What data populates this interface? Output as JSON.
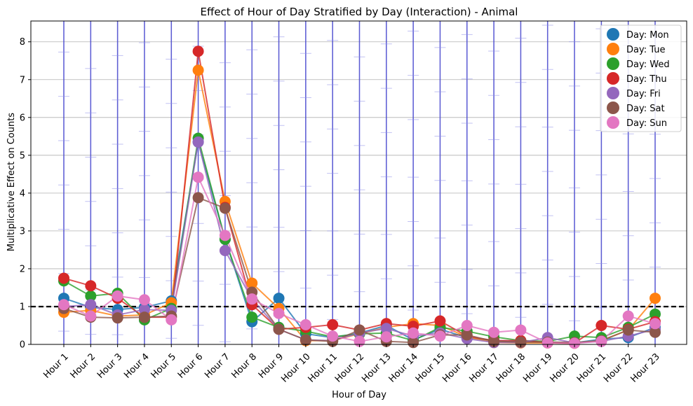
{
  "chart_data": {
    "type": "line",
    "title": "Effect of Hour of Day Stratified by Day (Interaction) - Animal",
    "xlabel": "Hour of Day",
    "ylabel": "Multiplicative Effect on Counts",
    "categories": [
      "Hour 1",
      "Hour 2",
      "Hour 3",
      "Hour 4",
      "Hour 5",
      "Hour 6",
      "Hour 7",
      "Hour 8",
      "Hour 9",
      "Hour 10",
      "Hour 11",
      "Hour 12",
      "Hour 13",
      "Hour 14",
      "Hour 15",
      "Hour 16",
      "Hour 17",
      "Hour 18",
      "Hour 19",
      "Hour 20",
      "Hour 21",
      "Hour 22",
      "Hour 23"
    ],
    "ylim": [
      0,
      8.55
    ],
    "yticks": [
      0,
      1,
      2,
      3,
      4,
      5,
      6,
      7,
      8
    ],
    "grid": true,
    "legend_position": "top-right",
    "reference_line": 1,
    "series": [
      {
        "name": "Day: Mon",
        "color": "#1f77b4",
        "values": [
          1.22,
          0.98,
          0.92,
          0.98,
          1.15,
          5.35,
          2.78,
          0.6,
          1.22,
          0.28,
          0.18,
          0.3,
          0.5,
          0.12,
          0.4,
          0.18,
          0.1,
          0.08,
          0.06,
          0.04,
          0.14,
          0.18,
          0.45
        ]
      },
      {
        "name": "Day: Tue",
        "color": "#ff7f0e",
        "values": [
          0.85,
          0.9,
          0.75,
          0.78,
          1.1,
          7.25,
          3.78,
          1.62,
          0.95,
          0.1,
          0.1,
          0.28,
          0.45,
          0.55,
          0.5,
          0.2,
          0.05,
          0.04,
          0.04,
          0.03,
          0.1,
          0.38,
          1.22
        ]
      },
      {
        "name": "Day: Wed",
        "color": "#2ca02c",
        "values": [
          1.68,
          1.28,
          1.35,
          0.65,
          0.95,
          5.45,
          2.78,
          0.72,
          0.45,
          0.35,
          0.2,
          0.28,
          0.3,
          0.1,
          0.45,
          0.35,
          0.2,
          0.1,
          0.08,
          0.22,
          0.18,
          0.45,
          0.8
        ]
      },
      {
        "name": "Day: Thu",
        "color": "#d62728",
        "values": [
          1.75,
          1.55,
          1.22,
          0.72,
          0.72,
          7.75,
          3.62,
          1.05,
          0.4,
          0.45,
          0.52,
          0.38,
          0.55,
          0.48,
          0.62,
          0.22,
          0.1,
          0.1,
          0.05,
          0.04,
          0.5,
          0.4,
          0.6
        ]
      },
      {
        "name": "Day: Fri",
        "color": "#9467bd",
        "values": [
          1.0,
          1.05,
          0.78,
          0.92,
          0.9,
          5.35,
          2.48,
          1.2,
          0.4,
          0.12,
          0.1,
          0.3,
          0.42,
          0.22,
          0.3,
          0.15,
          0.05,
          0.05,
          0.18,
          0.04,
          0.08,
          0.22,
          0.4
        ]
      },
      {
        "name": "Day: Sat",
        "color": "#8c564b",
        "values": [
          0.95,
          0.72,
          0.7,
          0.72,
          0.75,
          3.88,
          3.6,
          1.38,
          0.4,
          0.12,
          0.08,
          0.38,
          0.08,
          0.05,
          0.25,
          0.25,
          0.08,
          0.06,
          0.06,
          0.05,
          0.1,
          0.38,
          0.32
        ]
      },
      {
        "name": "Day: Sun",
        "color": "#e377c2",
        "values": [
          1.05,
          0.75,
          1.28,
          1.18,
          0.65,
          4.42,
          2.88,
          1.2,
          0.82,
          0.52,
          0.22,
          0.08,
          0.2,
          0.3,
          0.22,
          0.5,
          0.32,
          0.38,
          0.04,
          0.03,
          0.08,
          0.75,
          0.55
        ]
      }
    ]
  }
}
